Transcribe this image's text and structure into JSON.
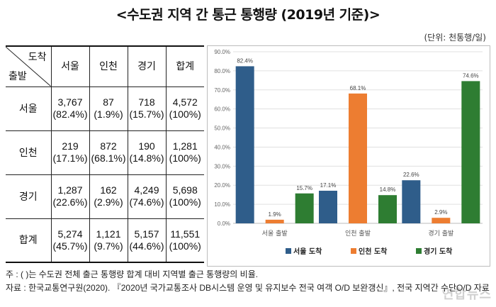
{
  "title": "<수도권 지역 간 통근 통행량 (2019년 기준)>",
  "unit": "(단위: 천통행/일)",
  "table": {
    "corner_top": "도착",
    "corner_bottom": "출발",
    "columns": [
      "서울",
      "인천",
      "경기",
      "합계"
    ],
    "rows": [
      {
        "label": "서울",
        "cells": [
          [
            "3,767",
            "(82.4%)"
          ],
          [
            "87",
            "(1.9%)"
          ],
          [
            "718",
            "(15.7%)"
          ],
          [
            "4,572",
            "(100%)"
          ]
        ]
      },
      {
        "label": "인천",
        "cells": [
          [
            "219",
            "(17.1%)"
          ],
          [
            "872",
            "(68.1%)"
          ],
          [
            "190",
            "(14.8%)"
          ],
          [
            "1,281",
            "(100%)"
          ]
        ]
      },
      {
        "label": "경기",
        "cells": [
          [
            "1,287",
            "(22.6%)"
          ],
          [
            "162",
            "(2.9%)"
          ],
          [
            "4,249",
            "(74.6%)"
          ],
          [
            "5,698",
            "(100%)"
          ]
        ]
      },
      {
        "label": "합계",
        "cells": [
          [
            "5,274",
            "(45.7%)"
          ],
          [
            "1,121",
            "(9.7%)"
          ],
          [
            "5,157",
            "(44.6%)"
          ],
          [
            "11,551",
            "(100%)"
          ]
        ]
      }
    ]
  },
  "chart_data": {
    "type": "bar",
    "categories": [
      "서울 출발",
      "인천 출발",
      "경기 출발"
    ],
    "series": [
      {
        "name": "서울 도착",
        "color": "#2f5d8a",
        "values": [
          82.4,
          17.1,
          22.6
        ],
        "labels": [
          "82.4%",
          "17.1%",
          "22.6%"
        ]
      },
      {
        "name": "인천 도착",
        "color": "#ed7d31",
        "values": [
          1.9,
          68.1,
          2.9
        ],
        "labels": [
          "1.9%",
          "68.1%",
          "2.9%"
        ]
      },
      {
        "name": "경기 도착",
        "color": "#2e7d32",
        "values": [
          15.7,
          14.8,
          74.6
        ],
        "labels": [
          "15.7%",
          "14.8%",
          "74.6%"
        ]
      }
    ],
    "yticks": [
      "0.0%",
      "10.0%",
      "20.0%",
      "30.0%",
      "40.0%",
      "50.0%",
      "60.0%",
      "70.0%",
      "80.0%",
      "90.0%"
    ],
    "ylim": [
      0,
      90
    ],
    "legend_position": "bottom-right"
  },
  "notes": {
    "note": "주 : (   )는 수도권 전체 출근 통행량 합계 대비 지역별 출근 통행량의 비율.",
    "source": "자료 : 한국교통연구원(2020). 『2020년 국가교통조사 DB시스템 운영 및 유지보수 전국 여객 O/D 보완갱신』, 전국 지역간 수단O/D 자료"
  },
  "watermark": "연합뉴스"
}
